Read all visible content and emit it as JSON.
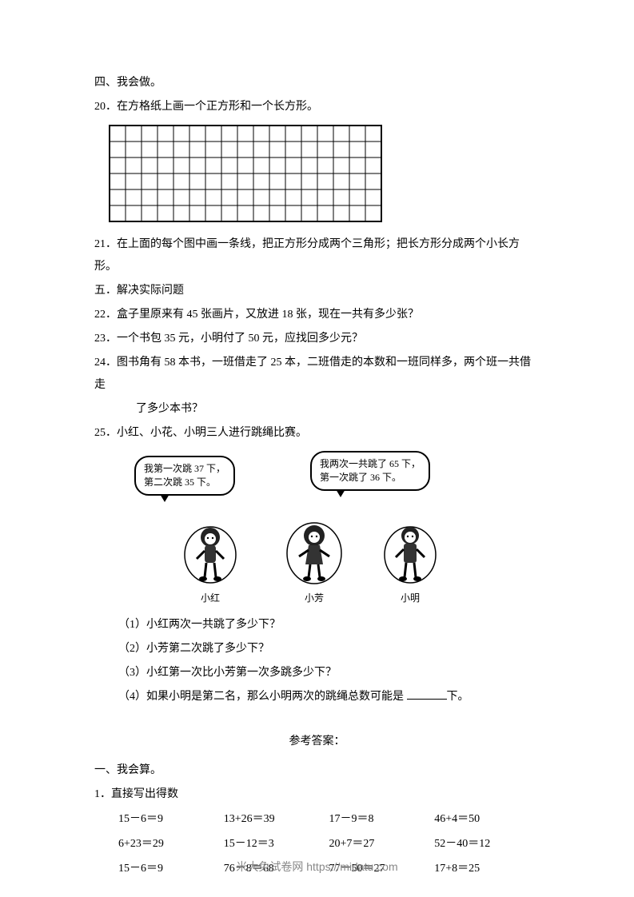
{
  "section4": {
    "title": "四、我会做。",
    "q20": "20．在方格纸上画一个正方形和一个长方形。",
    "grid": {
      "cols": 17,
      "rows": 6,
      "cell": 20
    },
    "q21": "21．在上面的每个图中画一条线，把正方形分成两个三角形；把长方形分成两个小长方形。"
  },
  "section5": {
    "title": "五．解决实际问题",
    "q22": "22．盒子里原来有 45 张画片，又放进 18 张，现在一共有多少张？",
    "q23": "23．一个书包 35 元，小明付了 50 元，应找回多少元？",
    "q24a": "24．图书角有 58 本书，一班借走了 25 本，二班借走的本数和一班同样多，两个班一共借走",
    "q24b": "了多少本书？",
    "q25": "25．小红、小花、小明三人进行跳绳比赛。",
    "bubble1_line1": "我第一次跳 37 下，",
    "bubble1_line2": "第二次跳 35 下。",
    "bubble2_line1": "我两次一共跳了 65 下，",
    "bubble2_line2": "第一次跳了 36 下。",
    "person1": "小红",
    "person2": "小芳",
    "person3": "小明",
    "sub1": "（1）小红两次一共跳了多少下？",
    "sub2": "（2）小芳第二次跳了多少下？",
    "sub3": "（3）小红第一次比小芳第一次多跳多少下？",
    "sub4_pre": "（4）如果小明是第二名，那么小明两次的跳绳总数可能是 ",
    "sub4_post": "下。"
  },
  "answers": {
    "title": "参考答案：",
    "section1": "一、我会算。",
    "q1": "1．直接写出得数",
    "rows": [
      [
        "15－6＝9",
        "13+26＝39",
        "17－9＝8",
        "46+4＝50"
      ],
      [
        "6+23＝29",
        "15－12＝3",
        "20+7＝27",
        "52－40＝12"
      ],
      [
        "15－6＝9",
        "76－8＝68",
        "77－50＝27",
        "17+8＝25"
      ]
    ]
  },
  "footer": "米大兔试卷网 https://midatu.com",
  "colors": {
    "text": "#000000",
    "footer": "#888888",
    "background": "#ffffff"
  }
}
